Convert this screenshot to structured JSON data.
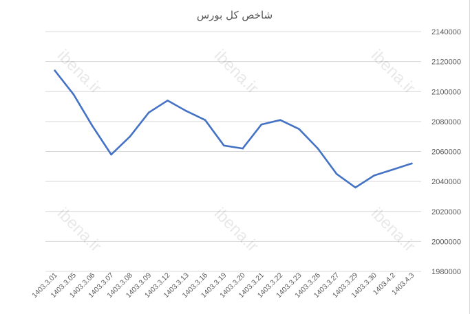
{
  "chart_data": {
    "type": "line",
    "title": "شاخص کل بورس",
    "xlabel": "",
    "ylabel": "",
    "ylim": [
      1980000,
      2140000
    ],
    "y_ticks": [
      1980000,
      2000000,
      2020000,
      2040000,
      2060000,
      2080000,
      2100000,
      2120000,
      2140000
    ],
    "y_axis_side": "right",
    "grid": true,
    "legend": "none",
    "line_color": "#4472c4",
    "categories": [
      "1403.3.01",
      "1403.3.05",
      "1403.3.06",
      "1403.3.07",
      "1403.3.08",
      "1403.3.09",
      "1403.3.12",
      "1403.3.13",
      "1403.3.16",
      "1403.3.19",
      "1403.3.20",
      "1403.3.21",
      "1403.3.22",
      "1403.3.23",
      "1403.3.26",
      "1403.3.27",
      "1403.3.29",
      "1403.3.30",
      "1403.4.2",
      "1403.4.3"
    ],
    "values": [
      2114000,
      2098000,
      2077000,
      2058000,
      2070000,
      2086000,
      2094000,
      2087000,
      2081000,
      2064000,
      2062000,
      2078000,
      2081000,
      2075000,
      2062000,
      2045000,
      2036000,
      2044000,
      2048000,
      2052000
    ],
    "watermarks": [
      "ibena.ir",
      "ibena.ir",
      "ibena.ir",
      "ibena.ir",
      "ibena.ir",
      "ibena.ir"
    ]
  }
}
